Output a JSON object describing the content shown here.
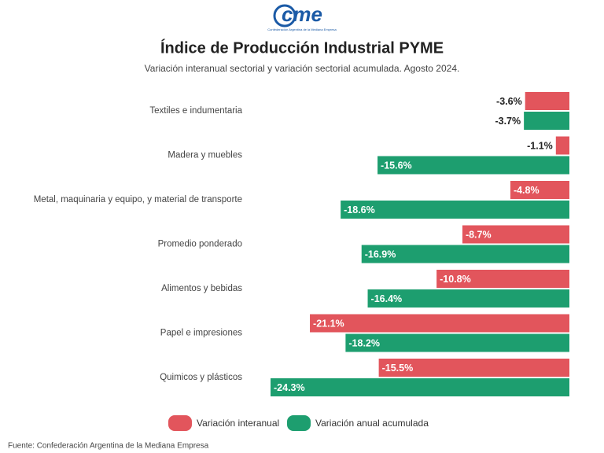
{
  "chart_data": {
    "type": "bar",
    "orientation": "horizontal",
    "logo": "cme",
    "logo_caption": "Confederación Argentina de la Mediana Empresa",
    "title": "Índice de Producción Industrial PYME",
    "subtitle": "Variación interanual sectorial y variación sectorial acumulada. Agosto 2024.",
    "categories": [
      "Textiles e indumentaria",
      "Madera y muebles",
      "Metal, maquinaria y equipo, y material de transporte",
      "Promedio ponderado",
      "Alimentos y bebidas",
      "Papel e impresiones",
      "Quimicos y plásticos"
    ],
    "series": [
      {
        "name": "Variación interanual",
        "color": "#e2555c",
        "values": [
          -3.6,
          -1.1,
          -4.8,
          -8.7,
          -10.8,
          -21.1,
          -15.5
        ],
        "value_labels": [
          "-3.6%",
          "-1.1%",
          "-4.8%",
          "-8.7%",
          "-10.8%",
          "-21.1%",
          "-15.5%"
        ]
      },
      {
        "name": "Variación anual acumulada",
        "color": "#1d9e6f",
        "values": [
          -3.7,
          -15.6,
          -18.6,
          -16.9,
          -16.4,
          -18.2,
          -24.3
        ],
        "value_labels": [
          "-3.7%",
          "-15.6%",
          "-18.6%",
          "-16.9%",
          "-16.4%",
          "-18.2%",
          "-24.3%"
        ]
      }
    ],
    "legend": "bottom",
    "source": "Fuente: Confederación Argentina de la Mediana Empresa"
  }
}
